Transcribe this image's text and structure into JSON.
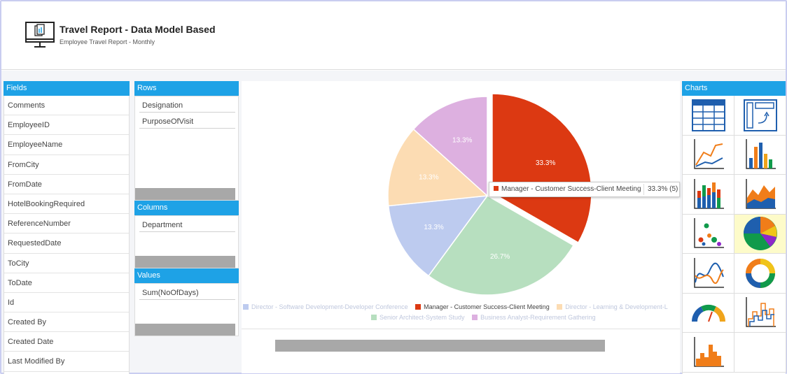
{
  "header": {
    "title": "Travel Report - Data Model Based",
    "subtitle": "Employee Travel Report - Monthly",
    "icon": "monitor-report-icon"
  },
  "fields": {
    "heading": "Fields",
    "items": [
      "Comments",
      "EmployeeID",
      "EmployeeName",
      "FromCity",
      "FromDate",
      "HotelBookingRequired",
      "ReferenceNumber",
      "RequestedDate",
      "ToCity",
      "ToDate",
      "Id",
      "Created By",
      "Created Date",
      "Last Modified By"
    ]
  },
  "rows": {
    "heading": "Rows",
    "items": [
      "Designation",
      "PurposeOfVisit"
    ]
  },
  "columns": {
    "heading": "Columns",
    "items": [
      "Department"
    ]
  },
  "values": {
    "heading": "Values",
    "items": [
      "Sum(NoOfDays)"
    ]
  },
  "charts_panel": {
    "heading": "Charts",
    "selected": "pie-chart"
  },
  "tooltip": {
    "label": "Manager - Customer Success-Client Meeting",
    "value": "33.3% (5)"
  },
  "chart_data": {
    "type": "pie",
    "slices": [
      {
        "name": "Manager - Customer Success-Client Meeting",
        "value": 33.3,
        "color": "#dc3912"
      },
      {
        "name": "Senior Architect-System Study",
        "value": 26.7,
        "color": "#b7dfbf"
      },
      {
        "name": "Director - Software Development-Developer Conference",
        "value": 13.3,
        "color": "#bdcbef"
      },
      {
        "name": "Director - Learning & Development-L",
        "value": 13.3,
        "color": "#fcdcb3"
      },
      {
        "name": "Business Analyst-Requirement Gathering",
        "value": 13.3,
        "color": "#ddb0e0"
      }
    ],
    "legend": [
      [
        "Director - Software Development-Developer Conference",
        "Manager - Customer Success-Client Meeting",
        "Director - Learning & Development-L"
      ],
      [
        "Senior Architect-System Study",
        "Business Analyst-Requirement Gathering"
      ]
    ]
  }
}
